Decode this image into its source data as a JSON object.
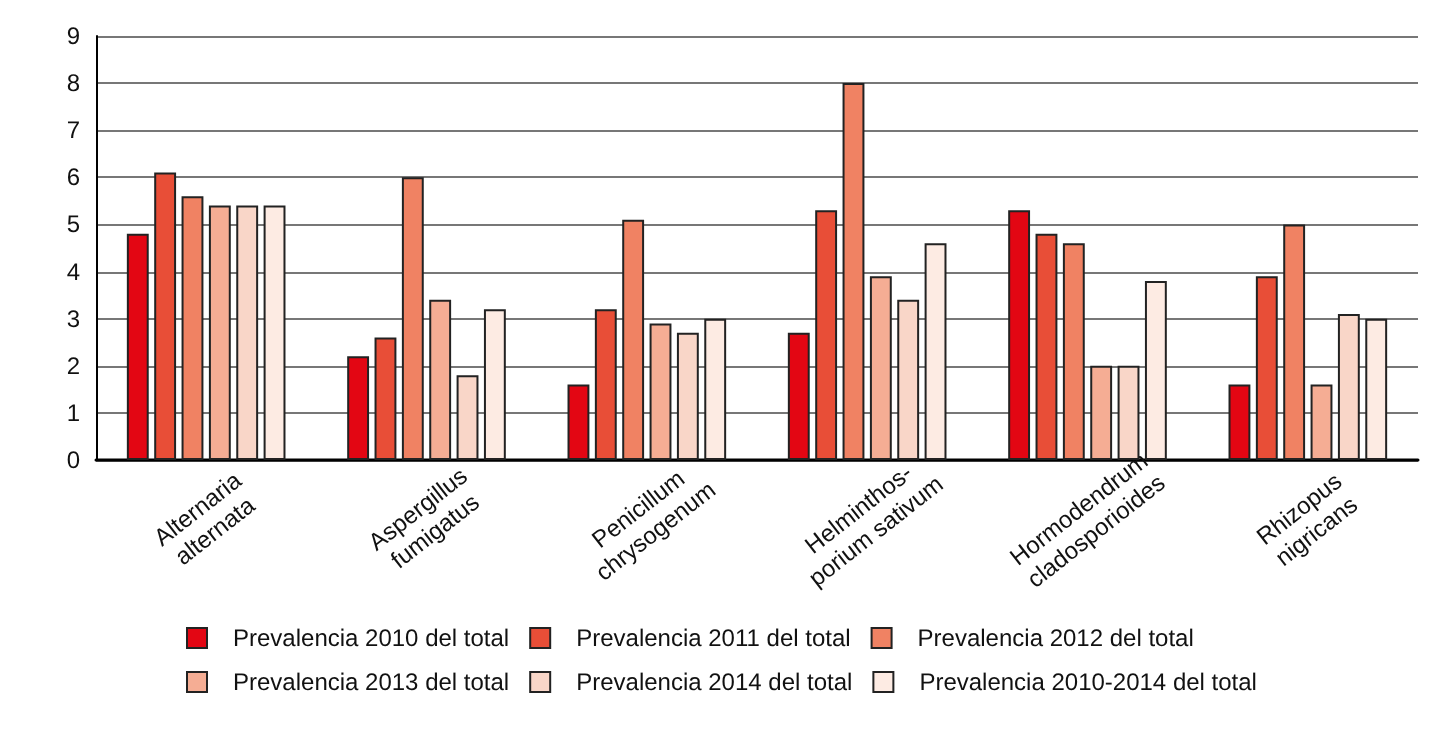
{
  "chart_data": {
    "type": "bar",
    "categories": [
      "Alternaria\nalternata",
      "Aspergillus\nfumigatus",
      "Penicillum\nchrysogenum",
      "Helminthos-\nporium sativum",
      "Hormodendrum\ncladosporioides",
      "Rhizopus\nnigricans"
    ],
    "series": [
      {
        "name": "Prevalencia 2010 del total",
        "color": "#e30613",
        "values": [
          4.8,
          2.2,
          1.6,
          2.7,
          5.3,
          1.6
        ]
      },
      {
        "name": "Prevalencia 2011 del total",
        "color": "#e84e37",
        "values": [
          6.1,
          2.6,
          3.2,
          5.3,
          4.8,
          3.9
        ]
      },
      {
        "name": "Prevalencia 2012 del total",
        "color": "#f08263",
        "values": [
          5.6,
          6.0,
          5.1,
          8.0,
          4.6,
          5.0
        ]
      },
      {
        "name": "Prevalencia 2013 del total",
        "color": "#f5ad94",
        "values": [
          5.4,
          3.4,
          2.9,
          3.9,
          2.0,
          1.6
        ]
      },
      {
        "name": "Prevalencia 2014 del total",
        "color": "#f9d6c8",
        "values": [
          5.4,
          1.8,
          2.7,
          3.4,
          2.0,
          3.1
        ]
      },
      {
        "name": "Prevalencia 2010-2014 del total",
        "color": "#fdebe3",
        "values": [
          5.4,
          3.2,
          3.0,
          4.6,
          3.8,
          3.0
        ]
      }
    ],
    "ylim": [
      0,
      9
    ],
    "yticks": [
      0,
      1,
      2,
      3,
      4,
      5,
      6,
      7,
      8,
      9
    ],
    "grid": "y",
    "legend": "bottom"
  }
}
